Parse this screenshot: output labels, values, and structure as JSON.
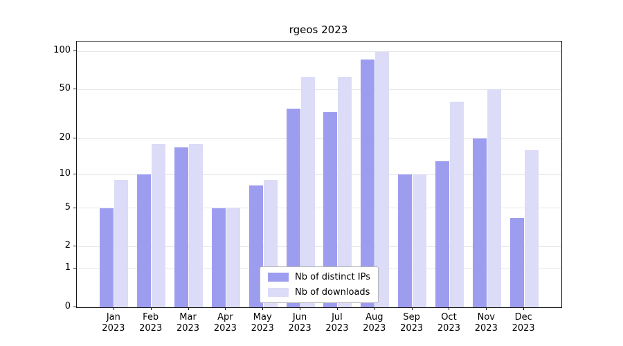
{
  "title": "rgeos 2023",
  "chart_data": {
    "type": "bar",
    "title": "rgeos 2023",
    "categories": [
      "Jan",
      "Feb",
      "Mar",
      "Apr",
      "May",
      "Jun",
      "Jul",
      "Aug",
      "Sep",
      "Oct",
      "Nov",
      "Dec"
    ],
    "year_label": "2023",
    "series": [
      {
        "key": "distinct-ips",
        "name": "Nb of distinct IPs",
        "color": "#9d9df0",
        "values": [
          5,
          10,
          17,
          5,
          8,
          35,
          33,
          87,
          10,
          13,
          20,
          4
        ]
      },
      {
        "key": "downloads",
        "name": "Nb of downloads",
        "color": "#dcdcf8",
        "values": [
          9,
          18,
          18,
          5,
          9,
          63,
          63,
          99,
          10,
          40,
          50,
          16
        ]
      }
    ],
    "y_ticks": [
      0,
      1,
      2,
      5,
      10,
      20,
      50,
      100
    ],
    "y_scale": "log1p",
    "y_axis_max": 120,
    "xlabel": "",
    "ylabel": "",
    "grid": "horizontal",
    "legend_position": "bottom-center",
    "colors": {
      "grid": "#e6e6e6",
      "spine": "#1a1a1a",
      "background": "#ffffff"
    }
  }
}
